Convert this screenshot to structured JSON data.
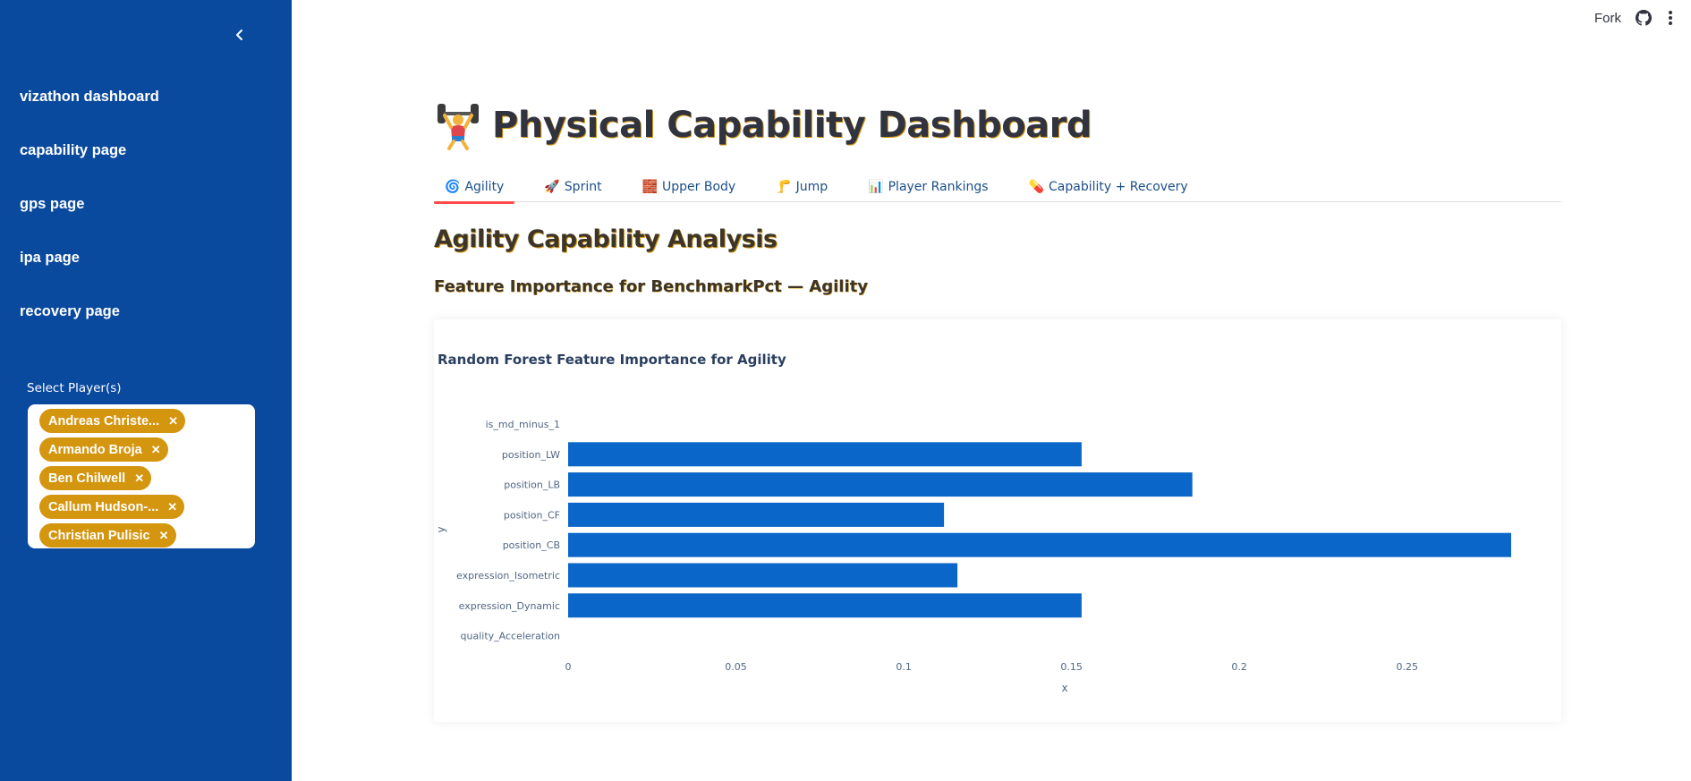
{
  "sidebar": {
    "nav_items": [
      "vizathon dashboard",
      "capability page",
      "gps page",
      "ipa page",
      "recovery page"
    ],
    "select_label": "Select Player(s)",
    "selected_players": [
      "Andreas Christe...",
      "Armando Broja",
      "Ben Chilwell",
      "Callum Hudson-...",
      "Christian Pulisic"
    ]
  },
  "topbar": {
    "fork_label": "Fork"
  },
  "main": {
    "title": "Physical Capability Dashboard",
    "tabs": [
      {
        "icon": "🌀",
        "label": "Agility"
      },
      {
        "icon": "🚀",
        "label": "Sprint"
      },
      {
        "icon": "🧱",
        "label": "Upper Body"
      },
      {
        "icon": "🦵",
        "label": "Jump"
      },
      {
        "icon": "📊",
        "label": "Player Rankings"
      },
      {
        "icon": "💊",
        "label": "Capability + Recovery"
      }
    ],
    "active_tab": "Agility",
    "section_title": "Agility Capability Analysis",
    "subsection_title": "Feature Importance for BenchmarkPct — Agility"
  },
  "colors": {
    "sidebar_bg": "#0a4a9e",
    "tag_bg": "#d4950f",
    "bar": "#0a66c8",
    "tab_underline": "#ff4b4b"
  },
  "chart_data": {
    "type": "bar",
    "orientation": "horizontal",
    "title": "Random Forest Feature Importance for Agility",
    "xlabel": "x",
    "ylabel": "y",
    "categories": [
      "is_md_minus_1",
      "position_LW",
      "position_LB",
      "position_CF",
      "position_CB",
      "expression_Isometric",
      "expression_Dynamic",
      "quality_Acceleration"
    ],
    "values": [
      0,
      0.153,
      0.186,
      0.112,
      0.281,
      0.116,
      0.153,
      0
    ],
    "xlim": [
      0,
      0.285
    ],
    "xticks": [
      0,
      0.05,
      0.1,
      0.15,
      0.2,
      0.25
    ],
    "xtick_labels": [
      "0",
      "0.05",
      "0.1",
      "0.15",
      "0.2",
      "0.25"
    ]
  }
}
